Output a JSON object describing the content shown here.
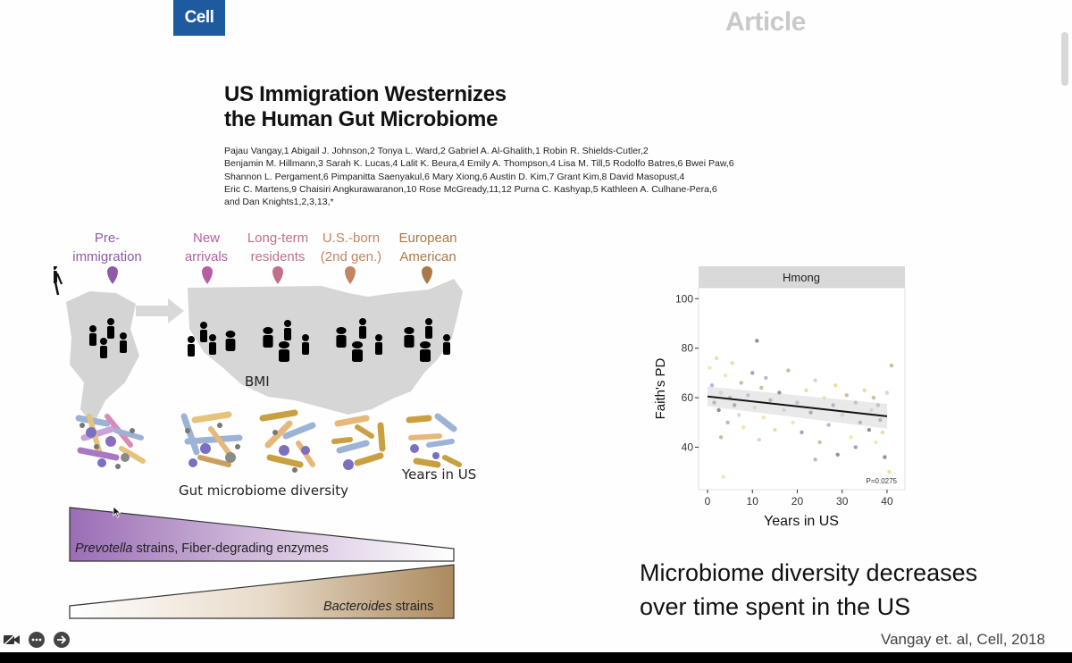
{
  "header": {
    "journal": "Cell",
    "section": "Article"
  },
  "paper": {
    "title_lines": [
      "US Immigration Westernizes",
      "the Human Gut Microbiome"
    ],
    "author_lines": [
      "Pajau Vangay,1 Abigail J. Johnson,2 Tonya L. Ward,2 Gabriel A. Al-Ghalith,1 Robin R. Shields-Cutler,2",
      "Benjamin M. Hillmann,3 Sarah K. Lucas,4 Lalit K. Beura,4 Emily A. Thompson,4 Lisa M. Till,5 Rodolfo Batres,6 Bwei Paw,6",
      "Shannon L. Pergament,6 Pimpanitta Saenyakul,6 Mary Xiong,6 Austin D. Kim,7 Grant Kim,8 David Masopust,4",
      "Eric C. Martens,9 Chaisiri Angkurawaranon,10 Rose McGready,11,12 Purna C. Kashyap,5 Kathleen A. Culhane-Pera,6",
      "and Dan Knights1,2,3,13,*"
    ]
  },
  "figure": {
    "stages": [
      {
        "lines": [
          "Pre-",
          "immigration"
        ],
        "color": "#8e5aa8"
      },
      {
        "lines": [
          "New",
          "arrivals"
        ],
        "color": "#b65fa4"
      },
      {
        "lines": [
          "Long-term",
          "residents"
        ],
        "color": "#c0708a"
      },
      {
        "lines": [
          "U.S.-born",
          "(2nd gen.)"
        ],
        "color": "#c5845f"
      },
      {
        "lines": [
          "European",
          "American"
        ],
        "color": "#a87a4a"
      }
    ],
    "bmi_label": "BMI",
    "years_label": "Years in US",
    "diversity_label": "Gut microbiome diversity",
    "prevotella": {
      "italic": "Prevotella",
      "rest": " strains, Fiber-degrading enzymes"
    },
    "bacteroides": {
      "italic": "Bacteroides",
      "rest": " strains"
    }
  },
  "plot": {
    "facet": "Hmong",
    "ylabel": "Faith's PD",
    "xlabel": "Years in US",
    "pvalue": "P=0.0275"
  },
  "chart_data": {
    "type": "scatter",
    "xlabel": "Years in US",
    "ylabel": "Faith's PD",
    "facet": "Hmong",
    "xlim": [
      0,
      42
    ],
    "ylim": [
      25,
      103
    ],
    "xticks": [
      0,
      10,
      20,
      30,
      40
    ],
    "yticks": [
      40,
      60,
      80,
      100
    ],
    "trend": {
      "x": [
        0,
        40
      ],
      "y": [
        60.5,
        52.5
      ]
    },
    "annotation": "P=0.0275",
    "points": [
      {
        "x": 0.5,
        "y": 72
      },
      {
        "x": 1,
        "y": 65
      },
      {
        "x": 1.5,
        "y": 58
      },
      {
        "x": 2,
        "y": 76
      },
      {
        "x": 2.5,
        "y": 55
      },
      {
        "x": 3,
        "y": 62
      },
      {
        "x": 3,
        "y": 44
      },
      {
        "x": 4,
        "y": 69
      },
      {
        "x": 4.5,
        "y": 50
      },
      {
        "x": 5,
        "y": 60
      },
      {
        "x": 5.5,
        "y": 74
      },
      {
        "x": 6,
        "y": 57
      },
      {
        "x": 7,
        "y": 53
      },
      {
        "x": 7.5,
        "y": 66
      },
      {
        "x": 8,
        "y": 48
      },
      {
        "x": 9,
        "y": 61
      },
      {
        "x": 10,
        "y": 70
      },
      {
        "x": 10.5,
        "y": 56
      },
      {
        "x": 11,
        "y": 83
      },
      {
        "x": 11.5,
        "y": 43
      },
      {
        "x": 12,
        "y": 64
      },
      {
        "x": 12.5,
        "y": 52
      },
      {
        "x": 13,
        "y": 68
      },
      {
        "x": 14,
        "y": 59
      },
      {
        "x": 15,
        "y": 47
      },
      {
        "x": 16,
        "y": 62
      },
      {
        "x": 17,
        "y": 55
      },
      {
        "x": 18,
        "y": 71
      },
      {
        "x": 19,
        "y": 50
      },
      {
        "x": 20,
        "y": 58
      },
      {
        "x": 21,
        "y": 46
      },
      {
        "x": 22,
        "y": 63
      },
      {
        "x": 23,
        "y": 54
      },
      {
        "x": 24,
        "y": 67
      },
      {
        "x": 25,
        "y": 42
      },
      {
        "x": 26,
        "y": 60
      },
      {
        "x": 27,
        "y": 49
      },
      {
        "x": 28,
        "y": 57
      },
      {
        "x": 28.5,
        "y": 65
      },
      {
        "x": 29,
        "y": 37
      },
      {
        "x": 30,
        "y": 53
      },
      {
        "x": 31,
        "y": 61
      },
      {
        "x": 32,
        "y": 44
      },
      {
        "x": 33,
        "y": 58
      },
      {
        "x": 34,
        "y": 50
      },
      {
        "x": 35,
        "y": 63
      },
      {
        "x": 36,
        "y": 47
      },
      {
        "x": 36.5,
        "y": 55
      },
      {
        "x": 37,
        "y": 60
      },
      {
        "x": 37.5,
        "y": 42
      },
      {
        "x": 38,
        "y": 57
      },
      {
        "x": 38.5,
        "y": 51
      },
      {
        "x": 39,
        "y": 46
      },
      {
        "x": 39.5,
        "y": 36
      },
      {
        "x": 40,
        "y": 62
      },
      {
        "x": 41,
        "y": 73
      },
      {
        "x": 3.5,
        "y": 28
      },
      {
        "x": 24,
        "y": 35
      },
      {
        "x": 33,
        "y": 40
      },
      {
        "x": 40.5,
        "y": 30
      }
    ]
  },
  "conclusion_lines": [
    "Microbiome diversity decreases",
    "over time spent in the US"
  ],
  "citation": "Vangay et. al, Cell, 2018",
  "toolbar": {
    "icons": [
      "video-icon",
      "more-icon",
      "next-icon"
    ]
  }
}
